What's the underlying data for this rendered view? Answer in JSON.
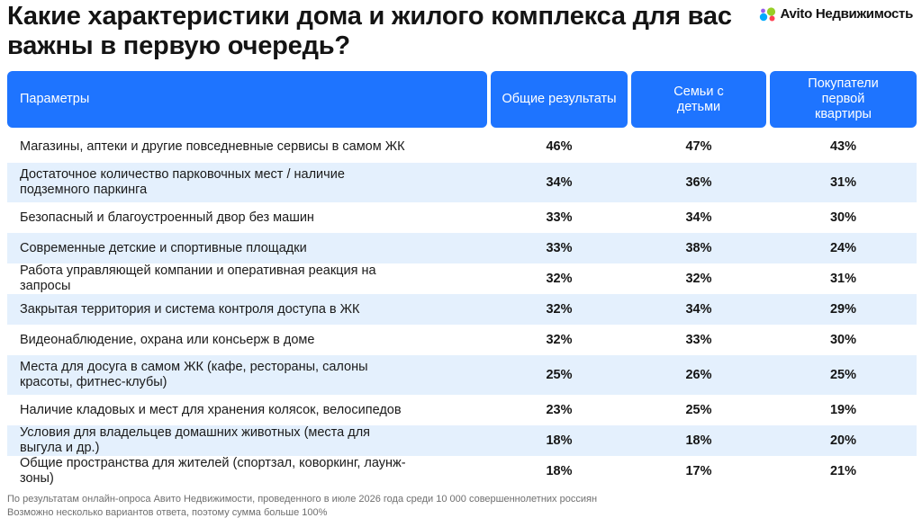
{
  "title": "Какие характеристики дома и жилого комплекса для вас важны в первую очередь?",
  "logo": {
    "text": "Avito Недвижимость",
    "colors": [
      "#00aaff",
      "#97cf26",
      "#ff4053",
      "#965eeb"
    ]
  },
  "table": {
    "headers": [
      "Параметры",
      "Общие результаты",
      "Семьи с детьми",
      "Покупатели первой квартиры"
    ],
    "rows": [
      {
        "param": "Магазины, аптеки и другие повседневные сервисы в самом ЖК",
        "v1": "46%",
        "v2": "47%",
        "v3": "43%"
      },
      {
        "param": "Достаточное количество парковочных мест / наличие подземного паркинга",
        "v1": "34%",
        "v2": "36%",
        "v3": "31%"
      },
      {
        "param": "Безопасный и благоустроенный двор без машин",
        "v1": "33%",
        "v2": "34%",
        "v3": "30%"
      },
      {
        "param": "Современные детские и спортивные площадки",
        "v1": "33%",
        "v2": "38%",
        "v3": "24%"
      },
      {
        "param": "Работа управляющей компании и оперативная реакция на запросы",
        "v1": "32%",
        "v2": "32%",
        "v3": "31%"
      },
      {
        "param": "Закрытая территория и система контроля доступа в ЖК",
        "v1": "32%",
        "v2": "34%",
        "v3": "29%"
      },
      {
        "param": "Видеонаблюдение, охрана или консьерж в доме",
        "v1": "32%",
        "v2": "33%",
        "v3": "30%"
      },
      {
        "param": "Места для досуга в самом ЖК (кафе, рестораны, салоны красоты, фитнес-клубы)",
        "v1": "25%",
        "v2": "26%",
        "v3": "25%"
      },
      {
        "param": "Наличие кладовых и мест для хранения колясок, велосипедов",
        "v1": "23%",
        "v2": "25%",
        "v3": "19%"
      },
      {
        "param": "Условия для владельцев домашних животных (места для выгула и др.)",
        "v1": "18%",
        "v2": "18%",
        "v3": "20%"
      },
      {
        "param": "Общие пространства для жителей (спортзал, коворкинг, лаунж-зоны)",
        "v1": "18%",
        "v2": "17%",
        "v3": "21%"
      }
    ]
  },
  "footnotes": [
    "По результатам онлайн-опроса Авито Недвижимости, проведенного в июле 2026 года среди 10 000 совершеннолетних россиян",
    "Возможно несколько вариантов ответа, поэтому сумма больше 100%"
  ]
}
